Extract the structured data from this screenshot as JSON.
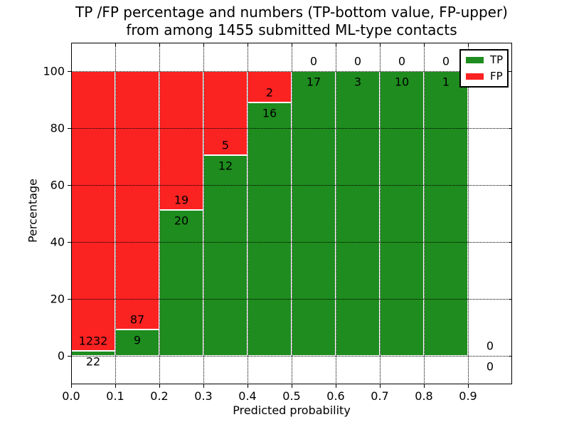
{
  "title": {
    "line1": "TP /FP percentage and numbers (TP-bottom value, FP-upper)",
    "line2": "from among 1455 submitted ML-type contacts"
  },
  "axes": {
    "x_label": "Predicted probability",
    "y_label": "Percentage"
  },
  "legend": {
    "items": [
      {
        "label": "TP",
        "color": "#1e8c1e"
      },
      {
        "label": "FP",
        "color": "#fb2222"
      }
    ]
  },
  "chart_data": {
    "type": "bar",
    "stacked": true,
    "title": "TP /FP percentage and numbers (TP-bottom value, FP-upper) from among 1455 submitted ML-type contacts",
    "xlabel": "Predicted probability",
    "ylabel": "Percentage",
    "total_contacts": 1455,
    "xlim": [
      0,
      1
    ],
    "ylim": [
      -10,
      110
    ],
    "grid": "dotted",
    "legend_position": "upper right",
    "series_colors": {
      "TP": "#1e8c1e",
      "FP": "#fb2222"
    },
    "x_ticks": [
      {
        "value": 0.0,
        "label": "0.0"
      },
      {
        "value": 0.1,
        "label": "0.1"
      },
      {
        "value": 0.2,
        "label": "0.2"
      },
      {
        "value": 0.3,
        "label": "0.3"
      },
      {
        "value": 0.4,
        "label": "0.4"
      },
      {
        "value": 0.5,
        "label": "0.5"
      },
      {
        "value": 0.6,
        "label": "0.6"
      },
      {
        "value": 0.7,
        "label": "0.7"
      },
      {
        "value": 0.8,
        "label": "0.8"
      },
      {
        "value": 0.9,
        "label": "0.9"
      }
    ],
    "y_ticks": [
      {
        "value": 0,
        "label": "0"
      },
      {
        "value": 20,
        "label": "20"
      },
      {
        "value": 40,
        "label": "40"
      },
      {
        "value": 60,
        "label": "60"
      },
      {
        "value": 80,
        "label": "80"
      },
      {
        "value": 100,
        "label": "100"
      }
    ],
    "bins": [
      {
        "x0": 0.0,
        "x1": 0.1,
        "tp": 22,
        "fp": 1232
      },
      {
        "x0": 0.1,
        "x1": 0.2,
        "tp": 9,
        "fp": 87
      },
      {
        "x0": 0.2,
        "x1": 0.3,
        "tp": 20,
        "fp": 19
      },
      {
        "x0": 0.3,
        "x1": 0.4,
        "tp": 12,
        "fp": 5
      },
      {
        "x0": 0.4,
        "x1": 0.5,
        "tp": 16,
        "fp": 2
      },
      {
        "x0": 0.5,
        "x1": 0.6,
        "tp": 17,
        "fp": 0
      },
      {
        "x0": 0.6,
        "x1": 0.7,
        "tp": 3,
        "fp": 0
      },
      {
        "x0": 0.7,
        "x1": 0.8,
        "tp": 10,
        "fp": 0
      },
      {
        "x0": 0.8,
        "x1": 0.9,
        "tp": 1,
        "fp": 0
      },
      {
        "x0": 0.9,
        "x1": 1.0,
        "tp": 0,
        "fp": 0
      }
    ]
  }
}
